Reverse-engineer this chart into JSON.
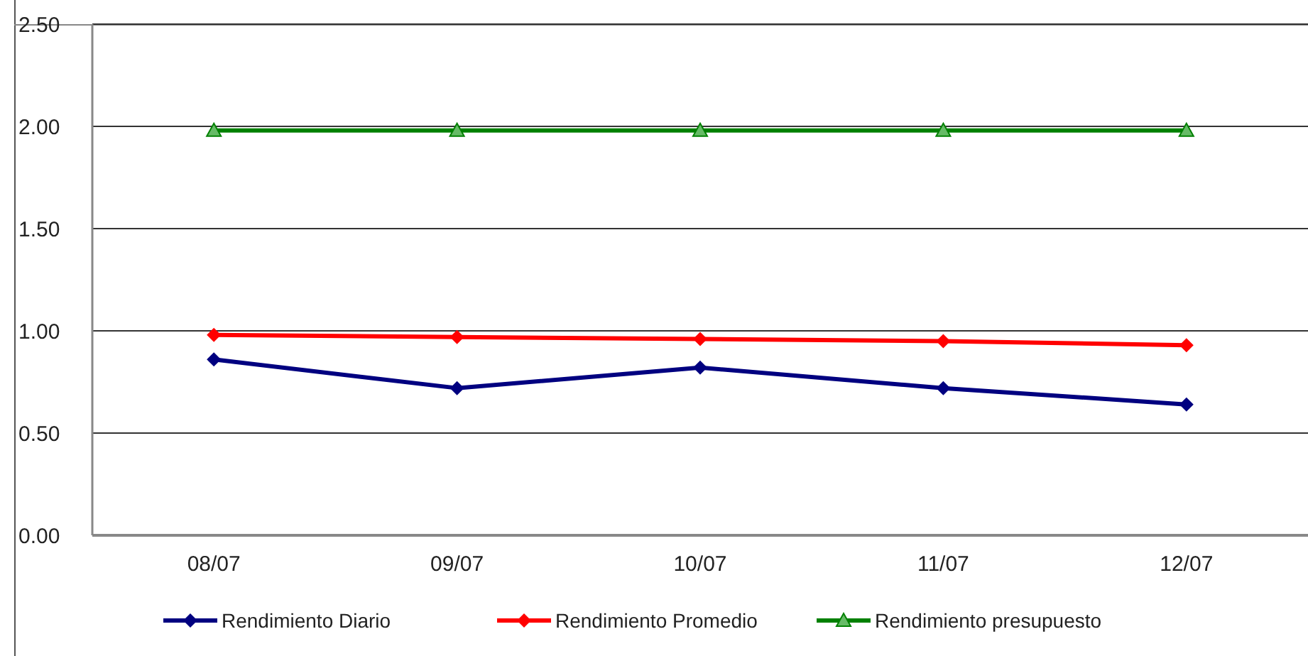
{
  "chart_data": {
    "type": "line",
    "categories": [
      "08/07",
      "09/07",
      "10/07",
      "11/07",
      "12/07"
    ],
    "series": [
      {
        "name": "Rendimiento Diario",
        "color": "#000080",
        "marker": "diamond",
        "values": [
          0.86,
          0.72,
          0.82,
          0.72,
          0.64
        ]
      },
      {
        "name": "Rendimiento Promedio",
        "color": "#ff0000",
        "marker": "diamond",
        "values": [
          0.98,
          0.97,
          0.96,
          0.95,
          0.93
        ]
      },
      {
        "name": "Rendimiento presupuesto",
        "color": "#008000",
        "marker": "triangle",
        "values": [
          1.98,
          1.98,
          1.98,
          1.98,
          1.98
        ]
      }
    ],
    "ylim": [
      0,
      2.5
    ],
    "yticks": [
      {
        "value": 0,
        "label": "0.00"
      },
      {
        "value": 0.5,
        "label": "0.50"
      },
      {
        "value": 1,
        "label": "1.00"
      },
      {
        "value": 1.5,
        "label": "1.50"
      },
      {
        "value": 2,
        "label": "2.00"
      },
      {
        "value": 2.5,
        "label": "2.50"
      }
    ],
    "grid": "y",
    "legend": "bottom",
    "line_style": "solid"
  }
}
